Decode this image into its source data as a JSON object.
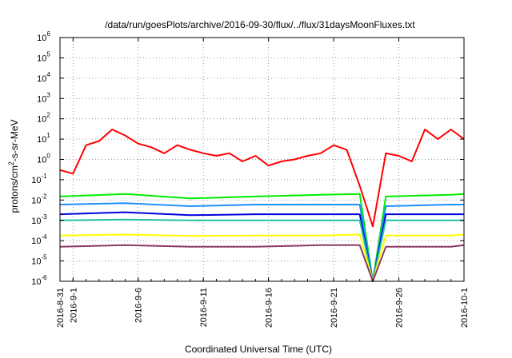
{
  "chart_data": {
    "type": "line",
    "title": "/data/run/goesPlots/archive/2016-09-30/flux/../flux/31daysMoonFluxes.txt",
    "xlabel": "Coordinated Universal Time (UTC)",
    "ylabel": "protons/cm²-s-sr-MeV",
    "ylabel_parts": {
      "pre": "protons/cm",
      "sup": "2",
      "post": "-s-sr-MeV"
    },
    "yscale": "log",
    "ylim_exp": [
      -6,
      6
    ],
    "y_tick_labels": [
      {
        "base": "10",
        "exp": "-6"
      },
      {
        "base": "10",
        "exp": "-5"
      },
      {
        "base": "10",
        "exp": "-4"
      },
      {
        "base": "10",
        "exp": "-3"
      },
      {
        "base": "10",
        "exp": "-2"
      },
      {
        "base": "10",
        "exp": "-1"
      },
      {
        "base": "10",
        "exp": "0"
      },
      {
        "base": "10",
        "exp": "1"
      },
      {
        "base": "10",
        "exp": "2"
      },
      {
        "base": "10",
        "exp": "3"
      },
      {
        "base": "10",
        "exp": "4"
      },
      {
        "base": "10",
        "exp": "5"
      },
      {
        "base": "10",
        "exp": "6"
      }
    ],
    "x_range": [
      "2016-08-31",
      "2016-10-01"
    ],
    "x_tick_labels": [
      {
        "date": "2016-08-31",
        "label": "2016-8-31"
      },
      {
        "date": "2016-09-01",
        "label": "2016-9-1"
      },
      {
        "date": "2016-09-06",
        "label": "2016-9-6"
      },
      {
        "date": "2016-09-11",
        "label": "2016-9-11"
      },
      {
        "date": "2016-09-16",
        "label": "2016-9-16"
      },
      {
        "date": "2016-09-21",
        "label": "2016-9-21"
      },
      {
        "date": "2016-09-26",
        "label": "2016-9-26"
      },
      {
        "date": "2016-10-01",
        "label": "2016-10-1"
      }
    ],
    "grid": true,
    "series": [
      {
        "color": "#ff0000",
        "x": [
          "2016-08-31",
          "2016-09-01",
          "2016-09-02",
          "2016-09-03",
          "2016-09-04",
          "2016-09-05",
          "2016-09-06",
          "2016-09-07",
          "2016-09-08",
          "2016-09-09",
          "2016-09-10",
          "2016-09-11",
          "2016-09-12",
          "2016-09-13",
          "2016-09-14",
          "2016-09-15",
          "2016-09-16",
          "2016-09-17",
          "2016-09-18",
          "2016-09-19",
          "2016-09-20",
          "2016-09-21",
          "2016-09-22",
          "2016-09-23",
          "2016-09-24",
          "2016-09-25",
          "2016-09-26",
          "2016-09-27",
          "2016-09-28",
          "2016-09-29",
          "2016-09-30",
          "2016-10-01"
        ],
        "values": [
          0.3,
          0.2,
          5,
          8,
          30,
          15,
          6,
          4,
          2,
          5,
          3,
          2,
          1.5,
          2,
          0.8,
          1.5,
          0.5,
          0.8,
          1,
          1.5,
          2,
          5,
          3,
          0.05,
          0.0005,
          2,
          1.5,
          0.8,
          30,
          10,
          30,
          10
        ]
      },
      {
        "color": "#00ee00",
        "x": [
          "2016-08-31",
          "2016-09-05",
          "2016-09-10",
          "2016-09-15",
          "2016-09-20",
          "2016-09-23",
          "2016-09-24",
          "2016-09-25",
          "2016-09-30",
          "2016-10-01"
        ],
        "values": [
          0.015,
          0.02,
          0.012,
          0.015,
          0.018,
          0.02,
          1e-06,
          0.015,
          0.018,
          0.02
        ]
      },
      {
        "color": "#1e90ff",
        "x": [
          "2016-08-31",
          "2016-09-05",
          "2016-09-10",
          "2016-09-15",
          "2016-09-20",
          "2016-09-23",
          "2016-09-24",
          "2016-09-25",
          "2016-09-30",
          "2016-10-01"
        ],
        "values": [
          0.006,
          0.007,
          0.005,
          0.006,
          0.006,
          0.006,
          1e-06,
          0.005,
          0.006,
          0.006
        ]
      },
      {
        "color": "#0000dd",
        "x": [
          "2016-08-31",
          "2016-09-05",
          "2016-09-10",
          "2016-09-15",
          "2016-09-20",
          "2016-09-23",
          "2016-09-24",
          "2016-09-25",
          "2016-09-30",
          "2016-10-01"
        ],
        "values": [
          0.002,
          0.0025,
          0.0018,
          0.002,
          0.002,
          0.002,
          1e-06,
          0.002,
          0.002,
          0.002
        ]
      },
      {
        "color": "#20c0a0",
        "x": [
          "2016-08-31",
          "2016-09-05",
          "2016-09-10",
          "2016-09-15",
          "2016-09-20",
          "2016-09-23",
          "2016-09-24",
          "2016-09-25",
          "2016-09-30",
          "2016-10-01"
        ],
        "values": [
          0.001,
          0.0011,
          0.001,
          0.001,
          0.001,
          0.001,
          1e-06,
          0.001,
          0.001,
          0.001
        ]
      },
      {
        "color": "#ffff00",
        "x": [
          "2016-08-31",
          "2016-09-05",
          "2016-09-10",
          "2016-09-15",
          "2016-09-20",
          "2016-09-23",
          "2016-09-24",
          "2016-09-25",
          "2016-09-30",
          "2016-10-01"
        ],
        "values": [
          0.00018,
          0.0002,
          0.00017,
          0.00018,
          0.00018,
          0.0002,
          1e-06,
          0.00018,
          0.00018,
          0.0002
        ]
      },
      {
        "color": "#8b3a62",
        "x": [
          "2016-08-31",
          "2016-09-05",
          "2016-09-10",
          "2016-09-15",
          "2016-09-20",
          "2016-09-23",
          "2016-09-24",
          "2016-09-25",
          "2016-09-30",
          "2016-10-01"
        ],
        "values": [
          5e-05,
          6e-05,
          5e-05,
          5e-05,
          6e-05,
          6e-05,
          1e-06,
          5e-05,
          5e-05,
          6e-05
        ]
      }
    ]
  }
}
